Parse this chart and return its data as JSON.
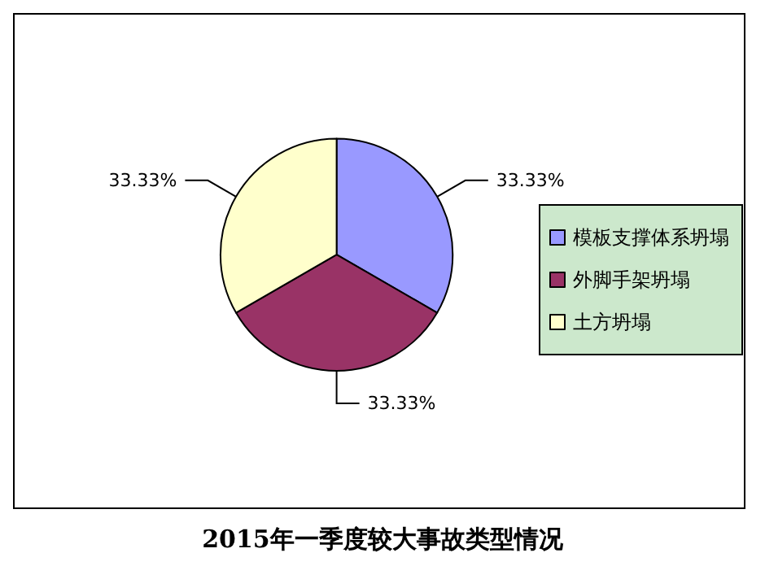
{
  "chart_data": {
    "type": "pie",
    "title": "2015年一季度较大事故类型情况",
    "categories": [
      "模板支撑体系坍塌",
      "外脚手架坍塌",
      "土方坍塌"
    ],
    "values": [
      33.33,
      33.33,
      33.33
    ],
    "colors": [
      "#9999ff",
      "#993366",
      "#ffffcc"
    ],
    "value_labels": [
      "33.33%",
      "33.33%",
      "33.33%"
    ],
    "legend": "right"
  }
}
